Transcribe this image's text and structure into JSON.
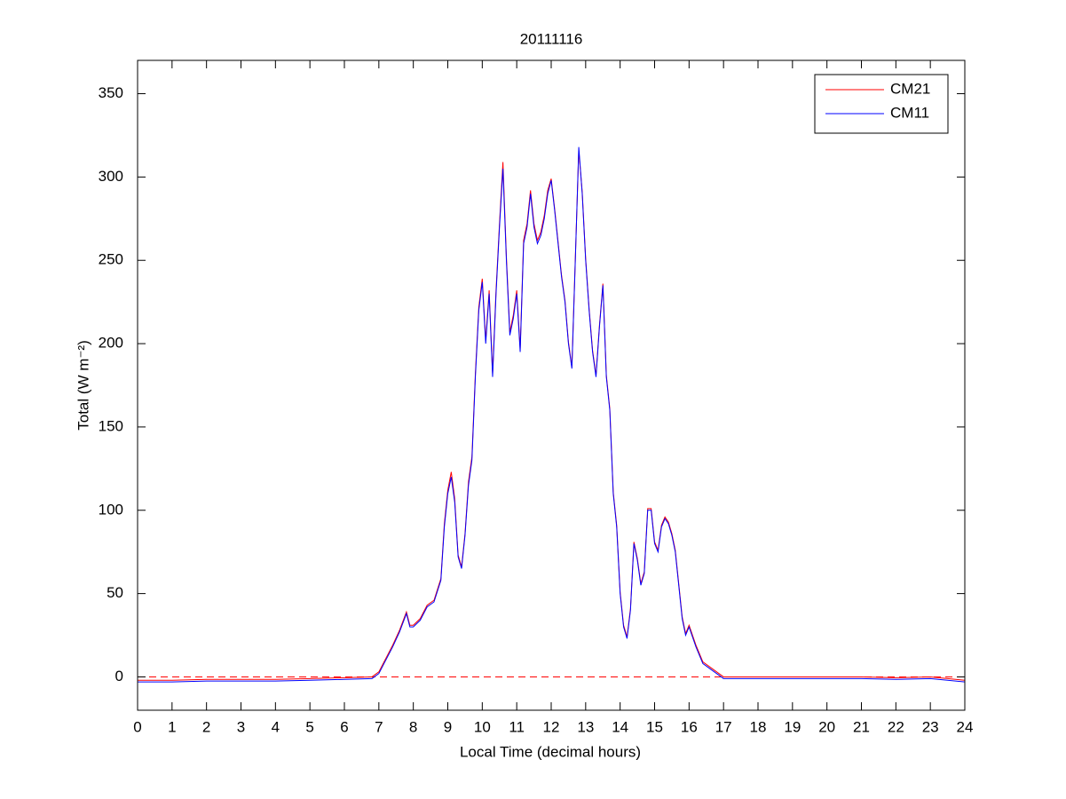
{
  "chart_data": {
    "type": "line",
    "title": "20111116",
    "xlabel": "Local Time (decimal hours)",
    "ylabel": "Total (W m⁻²)",
    "x": [
      0,
      1,
      2,
      3,
      4,
      5,
      6,
      6.8,
      7.0,
      7.2,
      7.4,
      7.6,
      7.8,
      7.9,
      8.0,
      8.2,
      8.4,
      8.6,
      8.8,
      8.9,
      9.0,
      9.1,
      9.2,
      9.3,
      9.4,
      9.5,
      9.6,
      9.7,
      9.8,
      9.9,
      10.0,
      10.1,
      10.2,
      10.3,
      10.4,
      10.5,
      10.6,
      10.7,
      10.8,
      10.9,
      11.0,
      11.1,
      11.2,
      11.3,
      11.4,
      11.5,
      11.6,
      11.7,
      11.8,
      11.9,
      12.0,
      12.1,
      12.2,
      12.3,
      12.4,
      12.5,
      12.6,
      12.7,
      12.8,
      12.9,
      13.0,
      13.1,
      13.2,
      13.3,
      13.4,
      13.5,
      13.6,
      13.7,
      13.8,
      13.9,
      14.0,
      14.1,
      14.2,
      14.3,
      14.4,
      14.5,
      14.6,
      14.7,
      14.8,
      14.9,
      15.0,
      15.1,
      15.2,
      15.3,
      15.4,
      15.5,
      15.6,
      15.7,
      15.8,
      15.9,
      16.0,
      16.2,
      16.4,
      16.6,
      16.8,
      17.0,
      18,
      19,
      20,
      21,
      22,
      23,
      24
    ],
    "series": [
      {
        "name": "CM21",
        "color": "#ff0000",
        "values": [
          -2,
          -2,
          -1.5,
          -1.5,
          -1.5,
          -1,
          -0.5,
          0,
          3,
          11,
          19,
          28,
          39,
          31,
          31,
          35,
          43,
          46,
          59,
          92,
          112,
          123,
          107,
          73,
          66,
          86,
          117,
          132,
          182,
          222,
          239,
          202,
          232,
          182,
          232,
          272,
          309,
          252,
          207,
          217,
          232,
          197,
          262,
          272,
          292,
          272,
          262,
          267,
          277,
          292,
          299,
          281,
          261,
          241,
          226,
          201,
          186,
          251,
          316,
          291,
          251,
          221,
          196,
          181,
          211,
          236,
          181,
          161,
          111,
          91,
          51,
          31,
          24,
          41,
          81,
          71,
          56,
          63,
          101,
          101,
          81,
          76,
          91,
          96,
          93,
          86,
          76,
          56,
          36,
          26,
          31,
          19,
          9,
          6,
          3,
          0,
          0,
          0,
          0,
          0,
          -0.5,
          0,
          -2
        ]
      },
      {
        "name": "CM11",
        "color": "#0000ff",
        "values": [
          -3,
          -3,
          -2.5,
          -2.5,
          -2.5,
          -2,
          -1.5,
          -1,
          2,
          10,
          18,
          27,
          38,
          30,
          30,
          34,
          42,
          45,
          58,
          90,
          110,
          120,
          105,
          72,
          65,
          85,
          115,
          130,
          180,
          220,
          237,
          200,
          230,
          180,
          230,
          270,
          305,
          250,
          205,
          215,
          230,
          195,
          260,
          270,
          290,
          270,
          260,
          265,
          275,
          290,
          298,
          280,
          260,
          240,
          225,
          200,
          185,
          250,
          318,
          290,
          250,
          220,
          195,
          180,
          210,
          235,
          180,
          160,
          110,
          90,
          50,
          30,
          23,
          40,
          80,
          70,
          55,
          62,
          100,
          100,
          80,
          75,
          90,
          95,
          92,
          85,
          75,
          55,
          35,
          25,
          30,
          18,
          8,
          5,
          2,
          -1,
          -1,
          -1,
          -1,
          -1,
          -1.5,
          -1,
          -3
        ]
      }
    ],
    "reference_lines": [
      {
        "value": 0,
        "color": "#ff0000",
        "style": "dashed"
      }
    ],
    "xlim": [
      0,
      24
    ],
    "xticks": [
      0,
      1,
      2,
      3,
      4,
      5,
      6,
      7,
      8,
      9,
      10,
      11,
      12,
      13,
      14,
      15,
      16,
      17,
      18,
      19,
      20,
      21,
      22,
      23,
      24
    ],
    "ylim": [
      -20,
      370
    ],
    "yticks": [
      0,
      50,
      100,
      150,
      200,
      250,
      300,
      350
    ],
    "legend": "upper right",
    "grid": false
  }
}
